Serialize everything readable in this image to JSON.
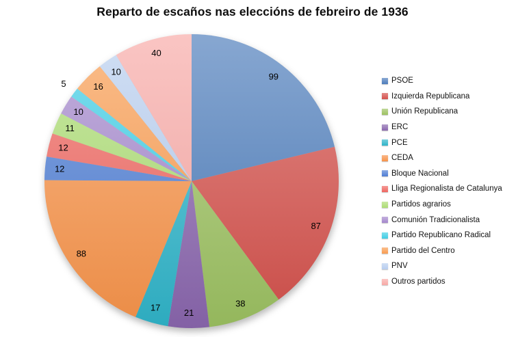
{
  "chart_data": {
    "type": "pie",
    "title": "Reparto de escaños nas eleccións de febreiro de 1936",
    "legend_position": "right",
    "start_angle_deg": 0,
    "direction": "clockwise",
    "labels_shown": "values",
    "categories": [
      "PSOE",
      "Izquierda Republicana",
      "Unión Republicana",
      "ERC",
      "PCE",
      "CEDA",
      "Bloque Nacional",
      "Lliga Regionalista de Catalunya",
      "Partidos agrarios",
      "Comunión Tradicionalista",
      "Partido Republicano Radical",
      "Partido del Centro",
      "PNV",
      "Outros partidos"
    ],
    "values": [
      99,
      87,
      38,
      21,
      17,
      88,
      12,
      12,
      11,
      10,
      5,
      16,
      10,
      40
    ],
    "colors": [
      "#4c7cbb",
      "#d4504b",
      "#9cc161",
      "#8a66ae",
      "#2fb4c9",
      "#f7934a",
      "#4e7dd4",
      "#ef6660",
      "#acdc73",
      "#a487cc",
      "#3fcde5",
      "#f99c51",
      "#b7cdef",
      "#f8a9a6"
    ]
  }
}
